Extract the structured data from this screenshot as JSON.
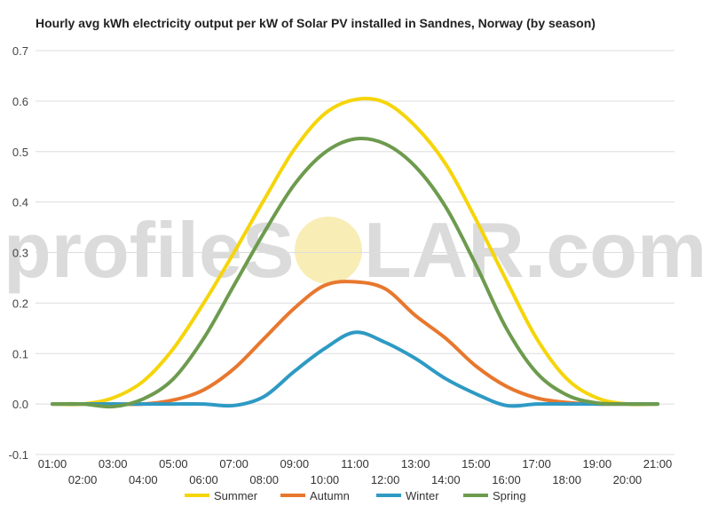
{
  "chart_data": {
    "type": "line",
    "title": "Hourly avg kWh electricity output per kW of Solar PV installed in Sandnes, Norway (by season)",
    "xlabel": "",
    "ylabel": "",
    "ylim": [
      -0.1,
      0.7
    ],
    "yticks": [
      -0.1,
      0.0,
      0.1,
      0.2,
      0.3,
      0.4,
      0.5,
      0.6,
      0.7
    ],
    "grid": true,
    "legend_position": "bottom",
    "x": [
      "01:00",
      "02:00",
      "03:00",
      "04:00",
      "05:00",
      "06:00",
      "07:00",
      "08:00",
      "09:00",
      "10:00",
      "11:00",
      "12:00",
      "13:00",
      "14:00",
      "15:00",
      "16:00",
      "17:00",
      "18:00",
      "19:00",
      "20:00",
      "21:00"
    ],
    "series": [
      {
        "name": "Summer",
        "color": "#f5d50a",
        "values": [
          0.0,
          0.0,
          0.012,
          0.045,
          0.11,
          0.2,
          0.3,
          0.405,
          0.505,
          0.575,
          0.603,
          0.597,
          0.55,
          0.475,
          0.365,
          0.245,
          0.13,
          0.05,
          0.012,
          0.0,
          0.0
        ]
      },
      {
        "name": "Autumn",
        "color": "#e8772e",
        "values": [
          0.0,
          0.0,
          0.0,
          0.0,
          0.008,
          0.028,
          0.07,
          0.13,
          0.19,
          0.235,
          0.242,
          0.228,
          0.175,
          0.13,
          0.075,
          0.035,
          0.012,
          0.003,
          0.0,
          0.0,
          0.0
        ]
      },
      {
        "name": "Winter",
        "color": "#2e9ac4",
        "values": [
          0.0,
          0.0,
          0.0,
          0.0,
          0.0,
          0.0,
          -0.003,
          0.015,
          0.065,
          0.11,
          0.142,
          0.122,
          0.09,
          0.05,
          0.02,
          -0.003,
          0.0,
          0.0,
          0.0,
          0.0,
          0.0
        ]
      },
      {
        "name": "Spring",
        "color": "#6d9b4e",
        "values": [
          0.0,
          0.0,
          -0.005,
          0.01,
          0.05,
          0.13,
          0.235,
          0.34,
          0.435,
          0.498,
          0.525,
          0.515,
          0.47,
          0.39,
          0.275,
          0.15,
          0.062,
          0.018,
          0.002,
          0.0,
          0.0
        ]
      }
    ]
  },
  "watermark": {
    "text_left": "profileS",
    "text_right": "LAR.com",
    "sun_color": "#f7eaa8"
  }
}
